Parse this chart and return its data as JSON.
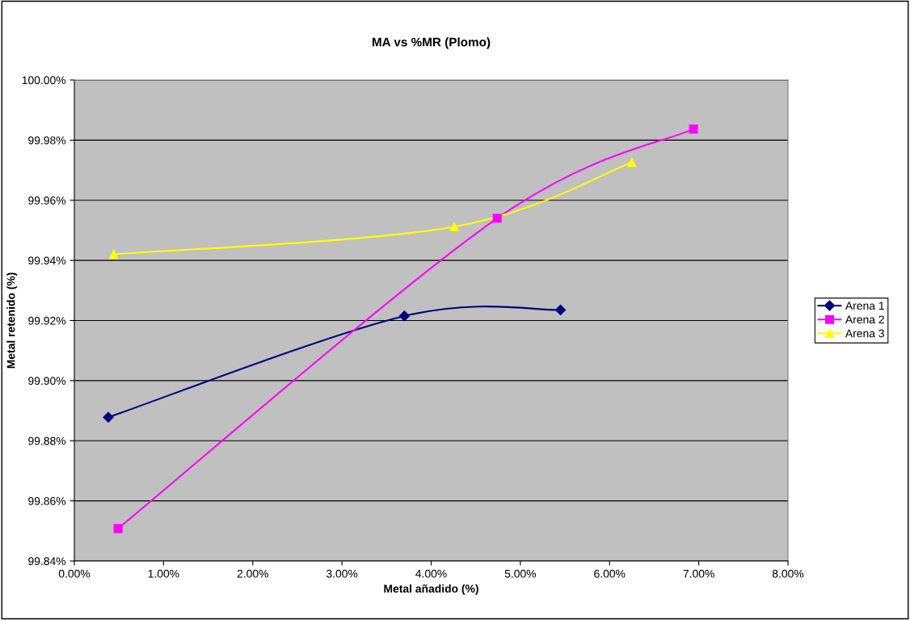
{
  "chart_data": {
    "type": "line",
    "title": "MA vs %MR (Plomo)",
    "xlabel": "Metal añadido (%)",
    "ylabel": "Metal retenido (%)",
    "xlim": [
      0,
      8
    ],
    "xticks": [
      {
        "value": 0,
        "label": "0.00%"
      },
      {
        "value": 1,
        "label": "1.00%"
      },
      {
        "value": 2,
        "label": "2.00%"
      },
      {
        "value": 3,
        "label": "3.00%"
      },
      {
        "value": 4,
        "label": "4.00%"
      },
      {
        "value": 5,
        "label": "5.00%"
      },
      {
        "value": 6,
        "label": "6.00%"
      },
      {
        "value": 7,
        "label": "7.00%"
      },
      {
        "value": 8,
        "label": "8.00%"
      }
    ],
    "ylim": [
      99.84,
      100
    ],
    "yticks": [
      {
        "value": 99.84,
        "label": "99.84%"
      },
      {
        "value": 99.86,
        "label": "99.86%"
      },
      {
        "value": 99.88,
        "label": "99.88%"
      },
      {
        "value": 99.9,
        "label": "99.90%"
      },
      {
        "value": 99.92,
        "label": "99.92%"
      },
      {
        "value": 99.94,
        "label": "99.94%"
      },
      {
        "value": 99.96,
        "label": "99.96%"
      },
      {
        "value": 99.98,
        "label": "99.98%"
      },
      {
        "value": 100,
        "label": "100.00%"
      }
    ],
    "grid": "y",
    "legend": "right",
    "line_style": "solid",
    "series": [
      {
        "name": "Arena 1",
        "color": "#000080",
        "marker": "diamond",
        "x": [
          0.38,
          3.7,
          5.45
        ],
        "values": [
          99.8878,
          99.9215,
          99.9235
        ]
      },
      {
        "name": "Arena 2",
        "color": "#ff00ff",
        "marker": "square",
        "x": [
          0.49,
          4.74,
          6.94
        ],
        "values": [
          99.8508,
          99.954,
          99.9837
        ]
      },
      {
        "name": "Arena 3",
        "color": "#ffff00",
        "marker": "triangle",
        "x": [
          0.44,
          4.26,
          6.25
        ],
        "values": [
          99.942,
          99.9512,
          99.9726
        ]
      }
    ]
  }
}
